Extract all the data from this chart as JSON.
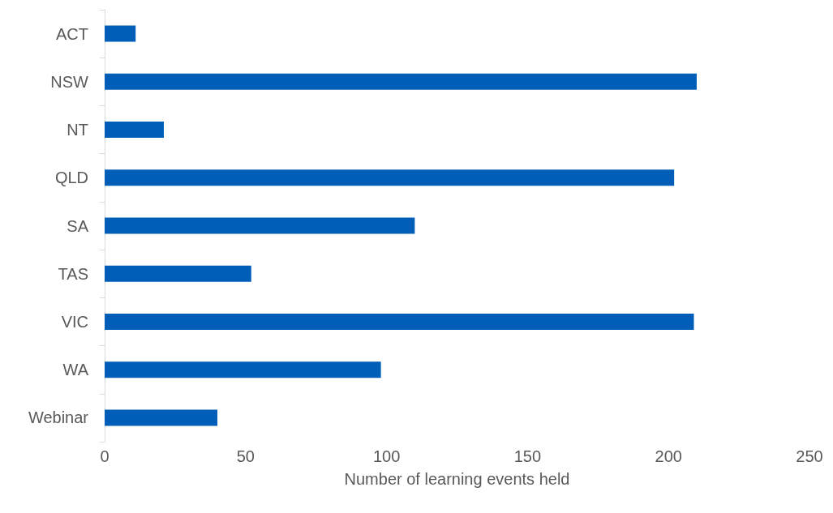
{
  "chart_data": {
    "type": "bar",
    "orientation": "horizontal",
    "xlabel": "Number of learning events held",
    "categories": [
      "ACT",
      "NSW",
      "NT",
      "QLD",
      "SA",
      "TAS",
      "VIC",
      "WA",
      "Webinar"
    ],
    "values": [
      11,
      210,
      21,
      202,
      110,
      52,
      209,
      98,
      40
    ],
    "color": "#005eb8",
    "xlim": [
      0,
      250
    ],
    "xticks": [
      0,
      50,
      100,
      150,
      200,
      250
    ],
    "grid": false
  }
}
